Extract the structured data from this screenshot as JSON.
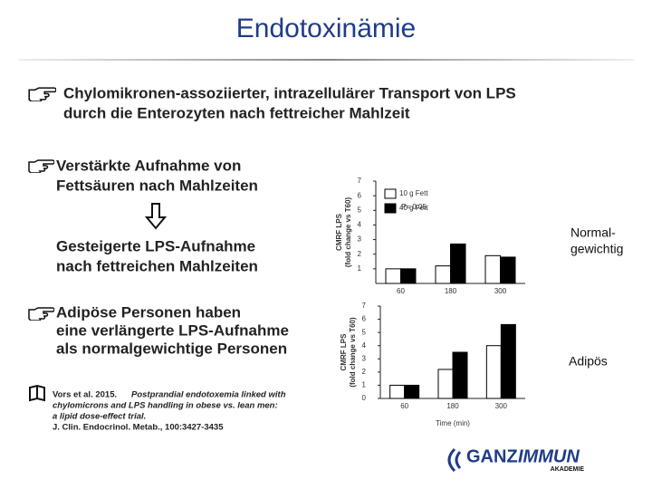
{
  "title": "Endotoxinämie",
  "bullets": [
    [
      "Chylomikronen-assoziierter, intrazellulärer Transport von LPS",
      "durch die Enterozyten nach fettreicher Mahlzeit"
    ],
    [
      "Verstärkte Aufnahme von",
      "Fettsäuren nach Mahlzeiten"
    ],
    [
      "Adipöse Personen haben",
      "eine verlängerte LPS-Aufnahme",
      "als normalgewichtige Personen"
    ]
  ],
  "consequence": [
    "Gesteigerte LPS-Aufnahme",
    "nach fettreichen Mahlzeiten"
  ],
  "reference": {
    "author": "Vors et al. 2015.",
    "title_lines": [
      "Postprandial endotoxemia linked with",
      "chylomicrons and LPS handling in obese vs. lean men:",
      "a lipid dose-effect trial."
    ],
    "journal": "J. Clin. Endocrinol. Metab., 100:3427-3435"
  },
  "logo": {
    "part1": "GANZ",
    "part2": "IMMUN",
    "sub": "AKADEMIE"
  },
  "chart_data": [
    {
      "type": "bar",
      "ylabel": "CMRF LPS\n(fold change vs T60)",
      "side_label": [
        "Normal-",
        "gewichtig"
      ],
      "annotation": "P= 0.05",
      "categories": [
        "60",
        "180",
        "300"
      ],
      "ylim": [
        0,
        7
      ],
      "yticks": [
        1,
        2,
        3,
        4,
        5,
        6,
        7
      ],
      "legend": true,
      "series": [
        {
          "name": "10 g Fett",
          "color": "#ffffff",
          "values": [
            1.0,
            1.2,
            1.9
          ]
        },
        {
          "name": "40 g Fett",
          "color": "#000000",
          "values": [
            1.0,
            2.7,
            1.8
          ]
        }
      ]
    },
    {
      "type": "bar",
      "ylabel": "CMRF LPS\n(fold change vs T60)",
      "xlabel": "Time (min)",
      "side_label": [
        "Adipös"
      ],
      "categories": [
        "60",
        "180",
        "300"
      ],
      "ylim": [
        0,
        7
      ],
      "yticks": [
        0,
        1,
        2,
        3,
        4,
        5,
        6,
        7
      ],
      "legend": false,
      "series": [
        {
          "name": "10 g Fett",
          "color": "#ffffff",
          "values": [
            1.0,
            2.2,
            4.0
          ]
        },
        {
          "name": "40 g Fett",
          "color": "#000000",
          "values": [
            1.0,
            3.5,
            5.6
          ]
        }
      ]
    }
  ]
}
